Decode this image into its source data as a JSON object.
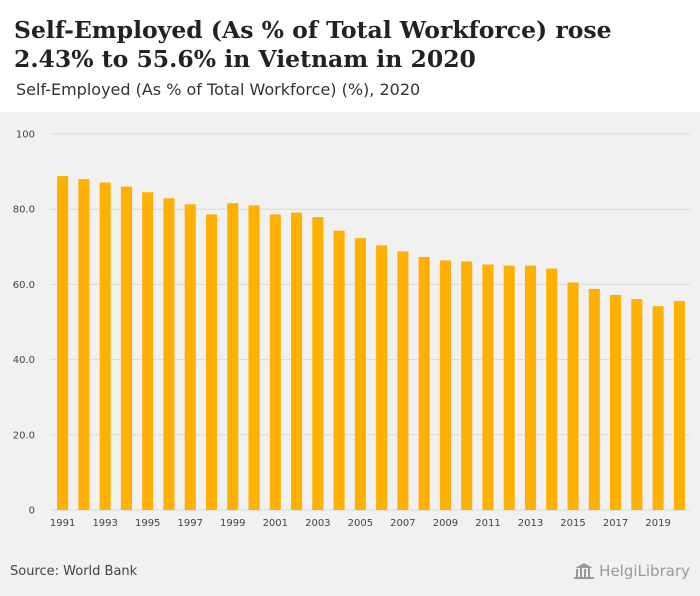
{
  "title": "Self-Employed (As % of Total Workforce) rose 2.43% to 55.6% in Vietnam in 2020",
  "subtitle": "Self-Employed (As % of Total Workforce) (%), 2020",
  "source": "Source: World Bank",
  "brand": "HelgiLibrary",
  "colors": {
    "bar": "#FFB000",
    "background": "#F1F1F1",
    "grid": "#D9D9D9"
  },
  "chart_data": {
    "type": "bar",
    "title": "Self-Employed (As % of Total Workforce) rose 2.43% to 55.6% in Vietnam in 2020",
    "subtitle": "Self-Employed (As % of Total Workforce) (%), 2020",
    "xlabel": "",
    "ylabel": "",
    "ylim": [
      0,
      100
    ],
    "yticks": [
      0,
      20,
      40,
      60,
      80,
      100
    ],
    "ytick_labels": [
      "0",
      "20.0",
      "40.0",
      "60.0",
      "80.0",
      "100"
    ],
    "grid": true,
    "categories": [
      "1991",
      "1992",
      "1993",
      "1994",
      "1995",
      "1996",
      "1997",
      "1998",
      "1999",
      "2000",
      "2001",
      "2002",
      "2003",
      "2004",
      "2005",
      "2006",
      "2007",
      "2008",
      "2009",
      "2010",
      "2011",
      "2012",
      "2013",
      "2014",
      "2015",
      "2016",
      "2017",
      "2018",
      "2019",
      "2020"
    ],
    "xtick_labels": [
      "1991",
      "1993",
      "1995",
      "1997",
      "1999",
      "2001",
      "2003",
      "2005",
      "2007",
      "2009",
      "2011",
      "2013",
      "2015",
      "2017",
      "2019"
    ],
    "values": [
      88.8,
      88.0,
      87.1,
      86.0,
      84.5,
      82.9,
      81.3,
      78.6,
      81.6,
      81.0,
      78.6,
      79.1,
      77.9,
      74.3,
      72.3,
      70.4,
      68.8,
      67.3,
      66.4,
      66.1,
      65.3,
      65.0,
      65.0,
      64.2,
      60.5,
      58.8,
      57.2,
      56.1,
      54.2,
      55.6
    ]
  }
}
